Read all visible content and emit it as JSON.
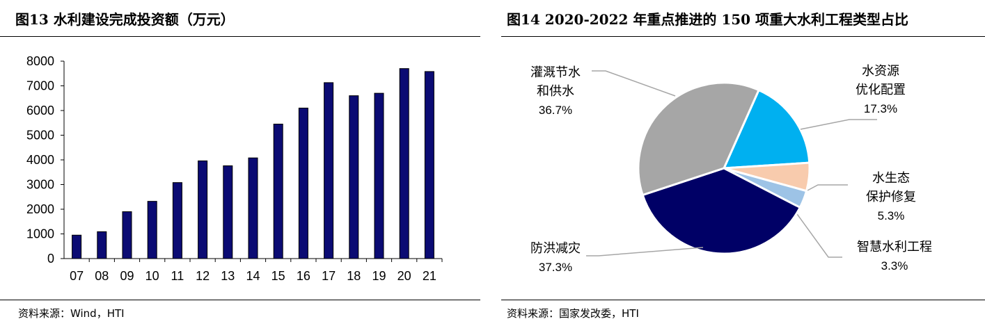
{
  "left": {
    "title": "图13 水利建设完成投资额（万元）",
    "source": "资料来源：Wind，HTI"
  },
  "right": {
    "title": "图14 2020-2022 年重点推进的 150 项重大水利工程类型占比",
    "source": "资料来源：国家发改委，HTI"
  },
  "chart_data": [
    {
      "type": "bar",
      "title": "图13 水利建设完成投资额（万元）",
      "categories": [
        "07",
        "08",
        "09",
        "10",
        "11",
        "12",
        "13",
        "14",
        "15",
        "16",
        "17",
        "18",
        "19",
        "20",
        "21"
      ],
      "values": [
        950,
        1090,
        1900,
        2320,
        3080,
        3960,
        3760,
        4080,
        5450,
        6100,
        7130,
        6600,
        6700,
        7700,
        7580
      ],
      "ylim": [
        0,
        8000
      ],
      "yticks": [
        0,
        1000,
        2000,
        3000,
        4000,
        5000,
        6000,
        7000,
        8000
      ],
      "colors": {
        "bar": "#0b0b73",
        "bar_edge": "#000000"
      },
      "grid": false,
      "legend": "none"
    },
    {
      "type": "pie",
      "title": "图14 2020-2022 年重点推进的 150 项重大水利工程类型占比",
      "slices": [
        {
          "name_lines": [
            "水资源",
            "优化配置"
          ],
          "value": 17.3,
          "label": "17.3%",
          "color": "#00b0f0"
        },
        {
          "name_lines": [
            "水生态",
            "保护修复"
          ],
          "value": 5.3,
          "label": "5.3%",
          "color": "#f8cbad"
        },
        {
          "name_lines": [
            "智慧水利工程"
          ],
          "value": 3.3,
          "label": "3.3%",
          "color": "#9dc3e6"
        },
        {
          "name_lines": [
            "防洪减灾"
          ],
          "value": 37.3,
          "label": "37.3%",
          "color": "#000066"
        },
        {
          "name_lines": [
            "灌溉节水",
            "和供水"
          ],
          "value": 36.7,
          "label": "36.7%",
          "color": "#a6a6a6"
        }
      ],
      "legend": "none"
    }
  ]
}
